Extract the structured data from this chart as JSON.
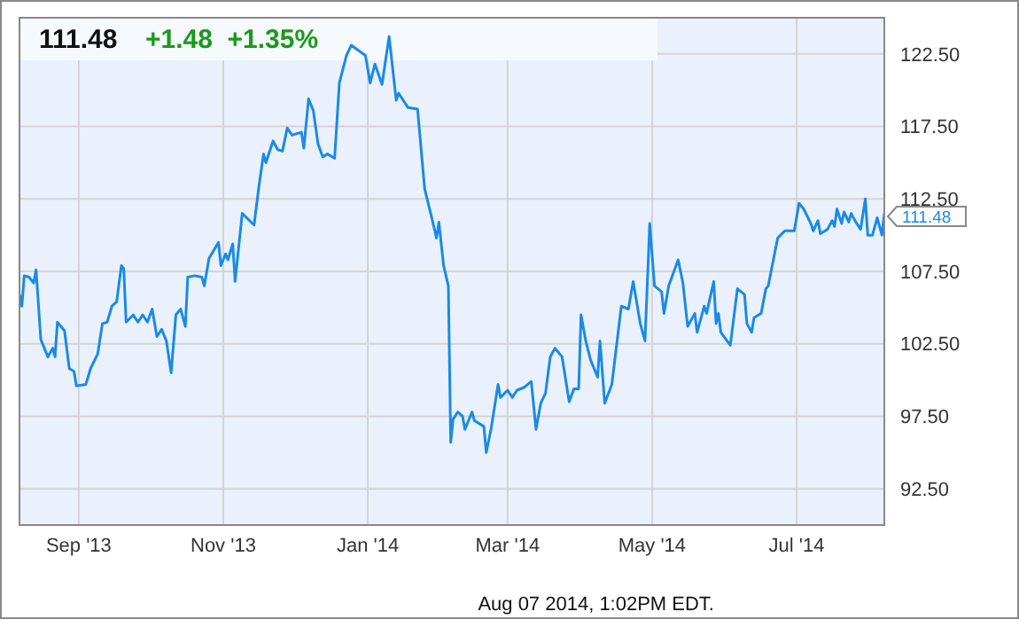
{
  "chart_data": {
    "type": "line",
    "title": "111.48",
    "subtitle": "+1.48  +1.35%",
    "xlim": [
      "2013-08-07",
      "2014-08-07"
    ],
    "xticks": [
      {
        "value": "2013-09-01",
        "label": "Sep '13"
      },
      {
        "value": "2013-11-01",
        "label": "Nov '13"
      },
      {
        "value": "2014-01-01",
        "label": "Jan '14"
      },
      {
        "value": "2014-03-01",
        "label": "Mar '14"
      },
      {
        "value": "2014-05-01",
        "label": "May '14"
      },
      {
        "value": "2014-07-01",
        "label": "Jul '14"
      }
    ],
    "ylim": [
      90,
      125
    ],
    "yticks": [
      {
        "value": 92.5,
        "label": "92.50"
      },
      {
        "value": 97.5,
        "label": "97.50"
      },
      {
        "value": 102.5,
        "label": "102.50"
      },
      {
        "value": 107.5,
        "label": "107.50"
      },
      {
        "value": 112.5,
        "label": "112.50"
      },
      {
        "value": 117.5,
        "label": "117.50"
      },
      {
        "value": 122.5,
        "label": "122.50"
      }
    ],
    "grid": true,
    "marker": "none",
    "line_style": "solid",
    "x": [
      "2013-08-07",
      "2013-08-08",
      "2013-08-09",
      "2013-08-11",
      "2013-08-13",
      "2013-08-14",
      "2013-08-16",
      "2013-08-19",
      "2013-08-21",
      "2013-08-22",
      "2013-08-23",
      "2013-08-26",
      "2013-08-28",
      "2013-08-30",
      "2013-08-31",
      "2013-09-04",
      "2013-09-06",
      "2013-09-09",
      "2013-09-11",
      "2013-09-13",
      "2013-09-15",
      "2013-09-17",
      "2013-09-19",
      "2013-09-20",
      "2013-09-21",
      "2013-09-24",
      "2013-09-26",
      "2013-09-28",
      "2013-09-30",
      "2013-10-02",
      "2013-10-04",
      "2013-10-06",
      "2013-10-08",
      "2013-10-10",
      "2013-10-12",
      "2013-10-14",
      "2013-10-16",
      "2013-10-17",
      "2013-10-20",
      "2013-10-23",
      "2013-10-24",
      "2013-10-26",
      "2013-10-30",
      "2013-10-31",
      "2013-11-02",
      "2013-11-03",
      "2013-11-05",
      "2013-11-06",
      "2013-11-09",
      "2013-11-14",
      "2013-11-16",
      "2013-11-18",
      "2013-11-19",
      "2013-11-22",
      "2013-11-24",
      "2013-11-26",
      "2013-11-28",
      "2013-11-30",
      "2013-12-04",
      "2013-12-05",
      "2013-12-07",
      "2013-12-09",
      "2013-12-11",
      "2013-12-13",
      "2013-12-15",
      "2013-12-18",
      "2013-12-20",
      "2013-12-23",
      "2013-12-25",
      "2013-12-31",
      "2014-01-02",
      "2014-01-04",
      "2014-01-07",
      "2014-01-10",
      "2014-01-13",
      "2014-01-14",
      "2014-01-18",
      "2014-01-22",
      "2014-01-25",
      "2014-01-28",
      "2014-01-30",
      "2014-01-31",
      "2014-02-02",
      "2014-02-04",
      "2014-02-05",
      "2014-02-06",
      "2014-02-08",
      "2014-02-10",
      "2014-02-11",
      "2014-02-14",
      "2014-02-15",
      "2014-02-19",
      "2014-02-20",
      "2014-02-22",
      "2014-02-25",
      "2014-02-26",
      "2014-03-01",
      "2014-03-03",
      "2014-03-05",
      "2014-03-08",
      "2014-03-11",
      "2014-03-13",
      "2014-03-15",
      "2014-03-17",
      "2014-03-19",
      "2014-03-21",
      "2014-03-24",
      "2014-03-27",
      "2014-03-29",
      "2014-03-31",
      "2014-04-01",
      "2014-04-03",
      "2014-04-05",
      "2014-04-08",
      "2014-04-09",
      "2014-04-11",
      "2014-04-14",
      "2014-04-18",
      "2014-04-21",
      "2014-04-23",
      "2014-04-26",
      "2014-04-28",
      "2014-04-30",
      "2014-05-02",
      "2014-05-05",
      "2014-05-06",
      "2014-05-08",
      "2014-05-12",
      "2014-05-14",
      "2014-05-16",
      "2014-05-19",
      "2014-05-20",
      "2014-05-23",
      "2014-05-24",
      "2014-05-27",
      "2014-05-28",
      "2014-05-29",
      "2014-05-30",
      "2014-06-03",
      "2014-06-06",
      "2014-06-09",
      "2014-06-10",
      "2014-06-12",
      "2014-06-13",
      "2014-06-16",
      "2014-06-18",
      "2014-06-19",
      "2014-06-23",
      "2014-06-26",
      "2014-06-30",
      "2014-07-02",
      "2014-07-04",
      "2014-07-07",
      "2014-07-08",
      "2014-07-10",
      "2014-07-11",
      "2014-07-14",
      "2014-07-16",
      "2014-07-17",
      "2014-07-18",
      "2014-07-20",
      "2014-07-21",
      "2014-07-23",
      "2014-07-24",
      "2014-07-26",
      "2014-07-28",
      "2014-07-30",
      "2014-07-31",
      "2014-08-02",
      "2014-08-04",
      "2014-08-06",
      "2014-08-07"
    ],
    "series": [
      {
        "color": "#1a8ae6",
        "values": [
          105.9,
          105.1,
          107.2,
          107.1,
          106.7,
          107.6,
          102.8,
          101.6,
          102.2,
          101.6,
          104.0,
          103.4,
          100.8,
          100.6,
          99.6,
          99.7,
          100.8,
          101.8,
          103.9,
          104.0,
          105.1,
          105.4,
          107.9,
          107.7,
          104.0,
          104.5,
          104.0,
          104.5,
          104.0,
          104.9,
          103.0,
          103.5,
          102.7,
          100.5,
          104.5,
          104.9,
          103.7,
          107.1,
          107.2,
          107.1,
          106.5,
          108.4,
          109.5,
          107.9,
          108.7,
          108.3,
          109.4,
          106.8,
          111.5,
          110.7,
          113.3,
          115.6,
          115.0,
          116.5,
          115.9,
          115.8,
          117.4,
          116.9,
          117.1,
          116.0,
          119.4,
          118.6,
          116.3,
          115.4,
          115.6,
          115.3,
          120.5,
          122.4,
          123.1,
          122.4,
          120.5,
          121.8,
          120.4,
          123.7,
          119.3,
          119.8,
          118.8,
          118.7,
          113.2,
          111.2,
          109.8,
          110.9,
          107.9,
          106.5,
          95.7,
          97.3,
          97.8,
          97.5,
          96.6,
          97.8,
          97.2,
          96.8,
          95.0,
          96.6,
          99.7,
          98.8,
          99.3,
          98.8,
          99.3,
          99.5,
          99.9,
          96.6,
          98.4,
          99.1,
          101.6,
          102.2,
          101.6,
          98.5,
          99.4,
          99.4,
          104.5,
          102.7,
          101.4,
          100.2,
          102.7,
          98.4,
          99.7,
          105.1,
          104.9,
          106.8,
          103.9,
          102.7,
          110.8,
          106.5,
          106.1,
          104.6,
          106.5,
          108.3,
          106.7,
          103.7,
          104.6,
          103.3,
          105.1,
          104.6,
          106.8,
          103.9,
          104.6,
          103.3,
          102.4,
          106.3,
          105.9,
          103.9,
          103.3,
          104.3,
          104.6,
          106.3,
          106.5,
          109.8,
          110.3,
          110.3,
          112.2,
          111.8,
          110.8,
          110.3,
          111.0,
          110.1,
          110.4,
          111.0,
          110.6,
          111.8,
          110.8,
          111.6,
          110.9,
          111.5,
          110.9,
          110.4,
          112.5,
          110.0,
          110.0,
          111.2,
          110.0,
          111.5
        ]
      }
    ],
    "annotations": [
      {
        "text": "111.48",
        "x": "2014-08-07",
        "y": 111.48
      },
      "Aug 07 2014, 1:02PM EDT."
    ]
  }
}
